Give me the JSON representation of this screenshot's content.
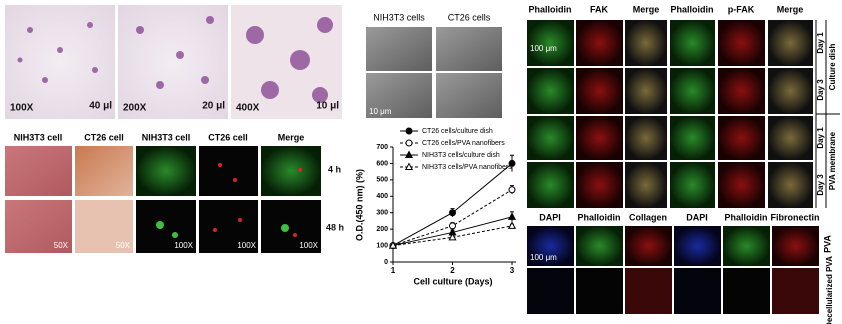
{
  "panel_a": {
    "magnifications": [
      "100X",
      "200X",
      "400X"
    ],
    "scale_bars": [
      "40 μl",
      "20 μl",
      "10 μl"
    ]
  },
  "panel_b": {
    "headers": [
      "NIH3T3 cells",
      "CT26 cells"
    ],
    "scale_bar": "10 μm"
  },
  "panel_c": {
    "headers": [
      "NIH3T3 cell",
      "CT26 cell",
      "NIH3T3 cell",
      "CT26 cell",
      "Merge"
    ],
    "rows": [
      "4 h",
      "48 h"
    ],
    "magnifications": [
      "50X",
      "50X",
      "100X",
      "100X",
      "100X"
    ]
  },
  "panel_d": {
    "headers": [
      "Phalloidin",
      "FAK",
      "Merge",
      "Phalloidin",
      "p-FAK",
      "Merge"
    ],
    "scale_bar": "100 μm",
    "days": [
      "Day 1",
      "Day 3",
      "Day 1",
      "Day 3"
    ],
    "groups": [
      "Culture dish",
      "PVA membrane"
    ]
  },
  "panel_e": {
    "headers": [
      "DAPI",
      "Phalloidin",
      "Collagen",
      "DAPI",
      "Phalloidin",
      "Fibronectin"
    ],
    "scale_bar": "100 μm",
    "rows": [
      "PVA",
      "Decellularized PVA"
    ]
  },
  "chart_data": {
    "type": "line",
    "x_label": "Cell culture (Days)",
    "y_label": "O.D.(450 nm) (%)",
    "x": [
      1,
      2,
      3
    ],
    "xlim": [
      1,
      3
    ],
    "xticks": [
      1,
      2,
      3
    ],
    "ylim": [
      0,
      700
    ],
    "yticks": [
      0,
      100,
      200,
      300,
      400,
      500,
      600,
      700
    ],
    "series": [
      {
        "name": "CT26 cells/culture dish",
        "color": "#000000",
        "marker": "circle",
        "filled": true,
        "dashed": false,
        "values": [
          100,
          300,
          600
        ],
        "errors": [
          5,
          25,
          50
        ]
      },
      {
        "name": "CT26 cells/PVA nanofibers",
        "color": "#000000",
        "marker": "circle",
        "filled": false,
        "dashed": true,
        "values": [
          100,
          220,
          440
        ],
        "errors": [
          5,
          20,
          25
        ]
      },
      {
        "name": "NIH3T3 cells/culture dish",
        "color": "#000000",
        "marker": "triangle",
        "filled": true,
        "dashed": false,
        "values": [
          100,
          180,
          275
        ],
        "errors": [
          5,
          15,
          30
        ]
      },
      {
        "name": "NIH3T3 cells/PVA nanofibers",
        "color": "#000000",
        "marker": "triangle",
        "filled": false,
        "dashed": true,
        "values": [
          100,
          150,
          220
        ],
        "errors": [
          5,
          10,
          10
        ]
      }
    ]
  }
}
